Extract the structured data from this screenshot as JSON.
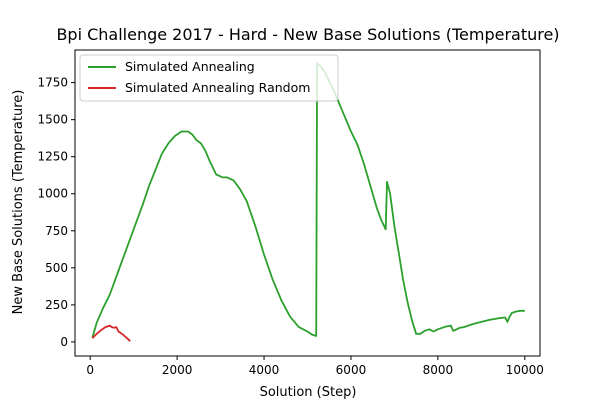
{
  "chart_data": {
    "type": "line",
    "title": "Bpi Challenge 2017 - Hard - New Base Solutions (Temperature)",
    "xlabel": "Solution (Step)",
    "ylabel": "New Base Solutions (Temperature)",
    "xlim": [
      -350,
      10350
    ],
    "ylim": [
      -95,
      1970
    ],
    "xticks": [
      0,
      2000,
      4000,
      6000,
      8000,
      10000
    ],
    "yticks": [
      0,
      250,
      500,
      750,
      1000,
      1250,
      1500,
      1750
    ],
    "grid": false,
    "legend_position": "top-left",
    "series": [
      {
        "name": "Simulated Annealing",
        "color": "#2ca02c",
        "x": [
          50,
          150,
          300,
          450,
          600,
          750,
          900,
          1050,
          1200,
          1350,
          1500,
          1650,
          1800,
          1950,
          2100,
          2250,
          2350,
          2450,
          2550,
          2650,
          2750,
          2900,
          3050,
          3150,
          3300,
          3450,
          3600,
          3800,
          4000,
          4200,
          4400,
          4600,
          4800,
          5000,
          5100,
          5200,
          5220,
          5300,
          5400,
          5500,
          5600,
          5700,
          5800,
          5900,
          6000,
          6150,
          6300,
          6450,
          6600,
          6700,
          6800,
          6830,
          6900,
          7000,
          7100,
          7200,
          7300,
          7400,
          7500,
          7600,
          7700,
          7800,
          7900,
          8000,
          8100,
          8200,
          8300,
          8350,
          8400,
          8500,
          8600,
          8800,
          9000,
          9200,
          9400,
          9550,
          9600,
          9650,
          9700,
          9800,
          9900,
          10000
        ],
        "y": [
          30,
          130,
          230,
          320,
          440,
          560,
          680,
          800,
          920,
          1050,
          1160,
          1270,
          1340,
          1390,
          1420,
          1420,
          1400,
          1360,
          1340,
          1290,
          1220,
          1130,
          1110,
          1110,
          1090,
          1030,
          950,
          780,
          590,
          420,
          280,
          170,
          100,
          70,
          50,
          40,
          1880,
          1860,
          1820,
          1760,
          1700,
          1630,
          1560,
          1490,
          1420,
          1330,
          1200,
          1050,
          900,
          820,
          760,
          1080,
          1000,
          780,
          600,
          420,
          270,
          150,
          55,
          55,
          75,
          85,
          70,
          85,
          95,
          105,
          110,
          75,
          80,
          95,
          100,
          120,
          135,
          150,
          160,
          165,
          135,
          170,
          195,
          205,
          210,
          210
        ]
      },
      {
        "name": "Simulated Annealing Random",
        "color": "#d62728",
        "x": [
          50,
          150,
          250,
          350,
          450,
          500,
          550,
          600,
          650,
          750,
          850,
          920
        ],
        "y": [
          25,
          55,
          80,
          100,
          110,
          100,
          95,
          100,
          70,
          50,
          25,
          5
        ]
      }
    ]
  }
}
